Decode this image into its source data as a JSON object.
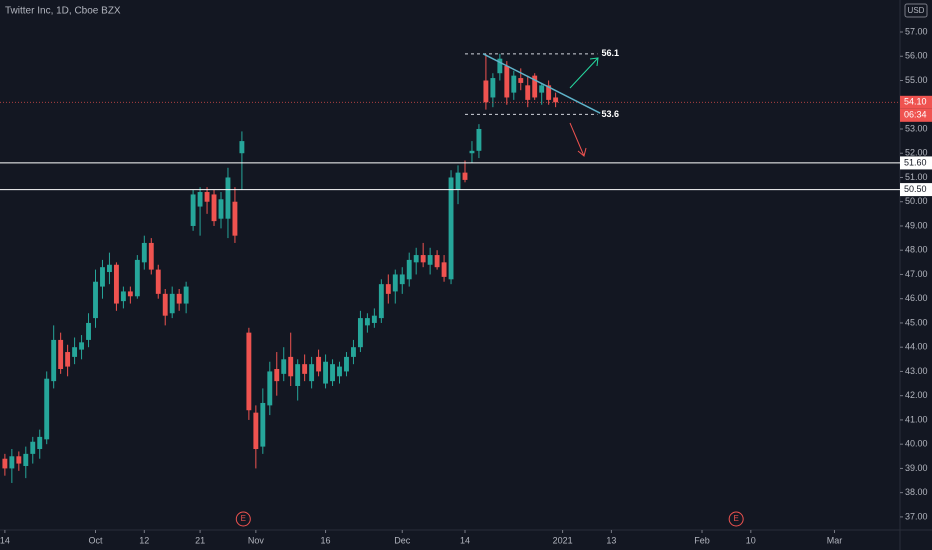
{
  "chart_data": {
    "type": "candlestick",
    "title": "Twitter Inc, 1D, Cboe BZX",
    "currency": "USD",
    "up_color": "#26a69a",
    "down_color": "#ef5350",
    "grid": false,
    "open": [
      39.4,
      39.0,
      39.5,
      39.1,
      39.6,
      39.8,
      40.2,
      42.6,
      44.3,
      43.8,
      43.6,
      43.9,
      44.3,
      45.2,
      46.5,
      47.1,
      47.4,
      45.9,
      46.3,
      46.1,
      47.5,
      48.3,
      47.2,
      46.2,
      45.4,
      46.2,
      45.8,
      49.0,
      49.8,
      50.4,
      50.3,
      49.3,
      49.3,
      50.0,
      52.0,
      44.6,
      41.3,
      39.9,
      41.6,
      43.1,
      42.9,
      43.6,
      42.4,
      43.3,
      42.6,
      43.6,
      42.5,
      42.6,
      42.8,
      43.0,
      43.6,
      44.0,
      44.9,
      45.0,
      45.2,
      46.6,
      46.3,
      46.6,
      46.8,
      47.5,
      47.8,
      47.4,
      47.8,
      47.5,
      46.8,
      50.5,
      51.2,
      52.0,
      52.1,
      55.0,
      54.3,
      55.3,
      55.6,
      54.5,
      55.1,
      54.8,
      55.2,
      54.5,
      54.8,
      54.3
    ],
    "high": [
      39.6,
      39.8,
      39.7,
      39.9,
      40.3,
      40.6,
      43.0,
      44.9,
      44.6,
      44.1,
      44.4,
      44.5,
      45.4,
      47.2,
      47.6,
      47.9,
      47.5,
      46.5,
      46.5,
      47.8,
      48.6,
      48.5,
      47.4,
      46.4,
      46.5,
      46.4,
      46.7,
      50.5,
      50.6,
      50.6,
      50.5,
      50.4,
      51.4,
      50.6,
      52.9,
      44.8,
      41.6,
      42.3,
      43.4,
      43.8,
      44.0,
      44.6,
      43.5,
      43.7,
      43.6,
      43.9,
      43.7,
      43.5,
      43.4,
      43.8,
      44.3,
      45.5,
      45.4,
      45.6,
      46.8,
      47.0,
      47.2,
      47.3,
      47.9,
      48.1,
      48.3,
      48.1,
      48.0,
      47.8,
      51.3,
      51.5,
      51.7,
      52.5,
      53.2,
      56.1,
      55.3,
      56.1,
      55.8,
      55.4,
      55.5,
      55.2,
      55.3,
      54.9,
      55.0,
      54.5
    ],
    "low": [
      38.7,
      38.4,
      38.9,
      38.6,
      39.2,
      39.4,
      40.0,
      42.3,
      42.9,
      42.8,
      43.3,
      43.5,
      44.0,
      44.8,
      46.0,
      46.6,
      45.5,
      45.6,
      45.8,
      46.0,
      47.2,
      47.0,
      46.0,
      44.9,
      45.2,
      45.5,
      45.4,
      48.8,
      48.6,
      49.5,
      49.0,
      48.9,
      48.5,
      48.3,
      50.5,
      41.0,
      39.0,
      39.6,
      41.2,
      42.0,
      42.6,
      42.4,
      41.8,
      42.6,
      42.3,
      42.8,
      42.3,
      42.4,
      42.5,
      42.8,
      43.3,
      43.8,
      44.6,
      44.8,
      45.0,
      45.8,
      45.8,
      46.2,
      46.5,
      47.0,
      47.3,
      47.0,
      47.2,
      46.7,
      46.6,
      49.9,
      50.8,
      51.6,
      51.8,
      53.8,
      53.9,
      55.0,
      54.0,
      54.2,
      54.6,
      53.9,
      54.2,
      54.0,
      54.0,
      53.9
    ],
    "close": [
      39.0,
      39.5,
      39.2,
      39.6,
      40.1,
      40.3,
      42.7,
      44.3,
      43.1,
      43.2,
      44.0,
      44.2,
      45.0,
      46.7,
      47.3,
      47.4,
      45.8,
      46.3,
      46.1,
      47.6,
      48.3,
      47.2,
      46.2,
      45.3,
      46.2,
      45.8,
      46.5,
      50.3,
      50.4,
      50.0,
      49.2,
      50.1,
      51.0,
      48.6,
      52.5,
      41.4,
      39.8,
      41.7,
      43.0,
      42.6,
      43.5,
      42.8,
      43.3,
      42.9,
      43.3,
      43.0,
      43.4,
      43.3,
      43.2,
      43.6,
      44.0,
      45.2,
      45.2,
      45.3,
      46.6,
      46.2,
      47.0,
      47.0,
      47.6,
      47.8,
      47.5,
      47.8,
      47.3,
      46.9,
      51.0,
      51.2,
      50.9,
      52.1,
      53.0,
      54.1,
      55.1,
      55.9,
      54.3,
      55.2,
      54.9,
      54.2,
      54.3,
      54.8,
      54.2,
      54.1
    ],
    "xlim": [
      -0.7,
      128.4
    ],
    "xticks": [
      {
        "value": 0,
        "label": "14"
      },
      {
        "value": 13,
        "label": "Oct"
      },
      {
        "value": 20,
        "label": "12"
      },
      {
        "value": 28,
        "label": "21"
      },
      {
        "value": 36,
        "label": "Nov"
      },
      {
        "value": 46,
        "label": "16"
      },
      {
        "value": 57,
        "label": "Dec"
      },
      {
        "value": 66,
        "label": "14"
      },
      {
        "value": 80,
        "label": "2021"
      },
      {
        "value": 87,
        "label": "13"
      },
      {
        "value": 100,
        "label": "Feb"
      },
      {
        "value": 107,
        "label": "10"
      },
      {
        "value": 119,
        "label": "Mar"
      }
    ],
    "ylim": [
      36.46,
      58.32
    ],
    "yticks": [
      {
        "value": 37,
        "label": "37.00"
      },
      {
        "value": 38,
        "label": "38.00"
      },
      {
        "value": 39,
        "label": "39.00"
      },
      {
        "value": 40,
        "label": "40.00"
      },
      {
        "value": 41,
        "label": "41.00"
      },
      {
        "value": 42,
        "label": "42.00"
      },
      {
        "value": 43,
        "label": "43.00"
      },
      {
        "value": 44,
        "label": "44.00"
      },
      {
        "value": 45,
        "label": "45.00"
      },
      {
        "value": 46,
        "label": "46.00"
      },
      {
        "value": 47,
        "label": "47.00"
      },
      {
        "value": 48,
        "label": "48.00"
      },
      {
        "value": 49,
        "label": "49.00"
      },
      {
        "value": 50,
        "label": "50.00"
      },
      {
        "value": 51,
        "label": "51.00"
      },
      {
        "value": 52,
        "label": "52.00"
      },
      {
        "value": 53,
        "label": "53.00"
      },
      {
        "value": 55,
        "label": "55.00"
      },
      {
        "value": 56,
        "label": "56.00"
      },
      {
        "value": 57,
        "label": "57.00"
      }
    ],
    "levels": [
      {
        "value": 51.6,
        "label": "51.60"
      },
      {
        "value": 50.5,
        "label": "50.50"
      }
    ],
    "last_price": {
      "value": 54.1,
      "label": "54.10"
    },
    "countdown": "06:34",
    "targets": [
      {
        "value": 56.1,
        "from": 66,
        "to": 85
      },
      {
        "value": 53.6,
        "from": 66,
        "to": 85
      }
    ],
    "trendline": [
      [
        68.6,
        56.1
      ],
      [
        85.4,
        53.65
      ]
    ],
    "events": [
      {
        "x": 34.2,
        "label": "E"
      },
      {
        "x": 104.9,
        "label": "E"
      }
    ]
  }
}
